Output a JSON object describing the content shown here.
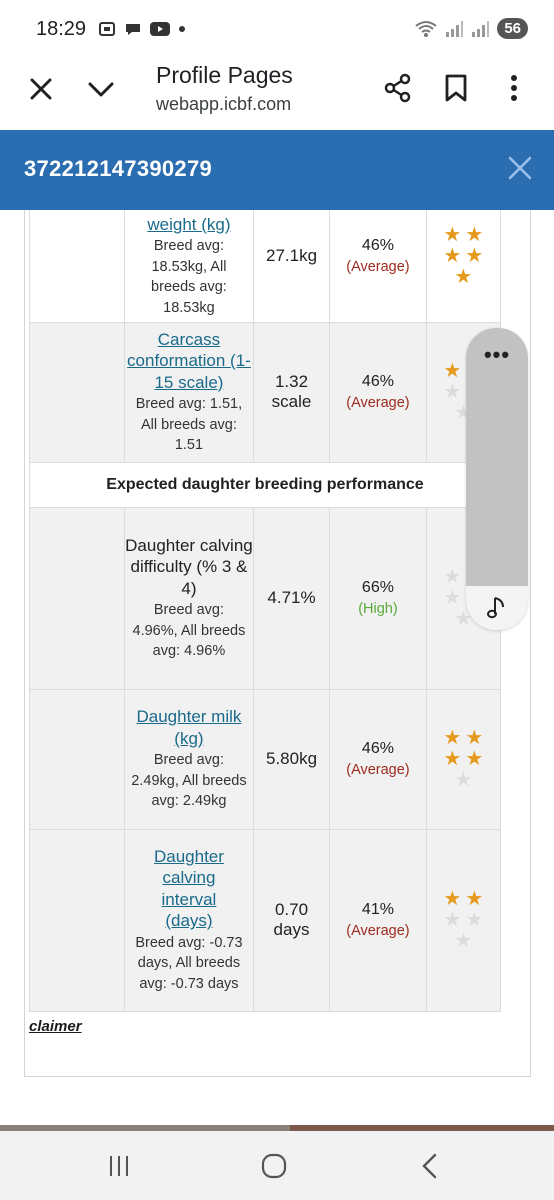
{
  "status_bar": {
    "time": "18:29",
    "battery": "56",
    "left_icons": [
      "screenshot-icon",
      "chat-icon",
      "youtube-icon",
      "dot-icon"
    ],
    "right_icons": [
      "wifi-icon",
      "signal-icon",
      "signal-icon"
    ]
  },
  "toolbar": {
    "title": "Profile Pages",
    "url": "webapp.icbf.com"
  },
  "header": {
    "id": "372212147390279"
  },
  "rows": [
    {
      "trait": "weight (kg)",
      "link": true,
      "avg": "Breed avg: 18.53kg, All breeds avg: 18.53kg",
      "value": "27.1kg",
      "reliability": "46%",
      "level": "(Average)",
      "stars": 5
    },
    {
      "trait": "Carcass conformation (1-15 scale)",
      "link": true,
      "avg": "Breed avg: 1.51, All breeds avg: 1.51",
      "value": "1.32 scale",
      "reliability": "46%",
      "level": "(Average)",
      "stars": 1
    },
    {
      "trait": "Daughter calving difficulty (% 3 & 4)",
      "link": false,
      "avg": "Breed avg: 4.96%, All breeds avg: 4.96%",
      "value": "4.71%",
      "reliability": "66%",
      "level": "(High)",
      "stars": 0
    },
    {
      "trait": "Daughter milk (kg)",
      "link": true,
      "avg": "Breed avg: 2.49kg, All breeds avg: 2.49kg",
      "value": "5.80kg",
      "reliability": "46%",
      "level": "(Average)",
      "stars": 4
    },
    {
      "trait": "Daughter calving interval (days)",
      "link": true,
      "avg": "Breed avg: -0.73 days, All breeds avg: -0.73 days",
      "value": "0.70 days",
      "reliability": "41%",
      "level": "(Average)",
      "stars": 2
    }
  ],
  "section_heading": "Expected daughter breeding performance",
  "disclaimer": "claimer",
  "floating_panel": {
    "more_label": "•••"
  },
  "colors": {
    "header_blue": "#2a6db0",
    "link": "#1a6a8c",
    "average": "#9b2c1f",
    "high": "#5aaa3a",
    "star_on": "#e59a1c",
    "star_off": "#dcdcdc"
  }
}
